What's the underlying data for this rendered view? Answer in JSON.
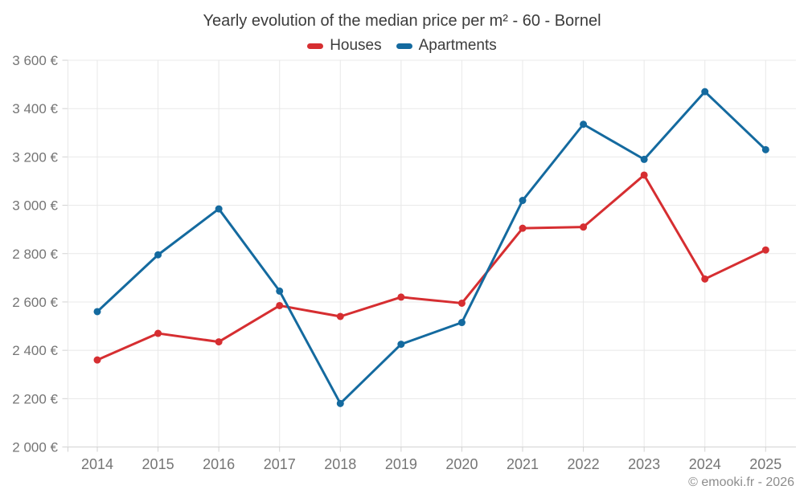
{
  "title": "Yearly evolution of the median price per m² - 60 - Bornel",
  "legend": [
    {
      "label": "Houses",
      "color": "#d62e31"
    },
    {
      "label": "Apartments",
      "color": "#146a9f"
    }
  ],
  "copyright": "© emooki.fr - 2026",
  "chart_data": {
    "type": "line",
    "title": "Yearly evolution of the median price per m² - 60 - Bornel",
    "x": [
      2014,
      2015,
      2016,
      2017,
      2018,
      2019,
      2020,
      2021,
      2022,
      2023,
      2024,
      2025
    ],
    "xtick_labels": [
      "2014",
      "2015",
      "2016",
      "2017",
      "2018",
      "2019",
      "2020",
      "2021",
      "2022",
      "2023",
      "2024",
      "2025"
    ],
    "series": [
      {
        "name": "Houses",
        "color": "#d62e31",
        "values": [
          2360,
          2470,
          2435,
          2585,
          2540,
          2620,
          2595,
          2905,
          2910,
          3125,
          2695,
          2815
        ]
      },
      {
        "name": "Apartments",
        "color": "#146a9f",
        "values": [
          2560,
          2795,
          2985,
          2645,
          2180,
          2425,
          2515,
          3020,
          3335,
          3190,
          3470,
          3230
        ]
      }
    ],
    "ylim": [
      2000,
      3600
    ],
    "ytick_step": 200,
    "ytick_labels": [
      "2 000 €",
      "2 200 €",
      "2 400 €",
      "2 600 €",
      "2 800 €",
      "3 000 €",
      "3 200 €",
      "3 400 €",
      "3 600 €"
    ],
    "yunit": "€",
    "grid": true,
    "legend_position": "top"
  }
}
